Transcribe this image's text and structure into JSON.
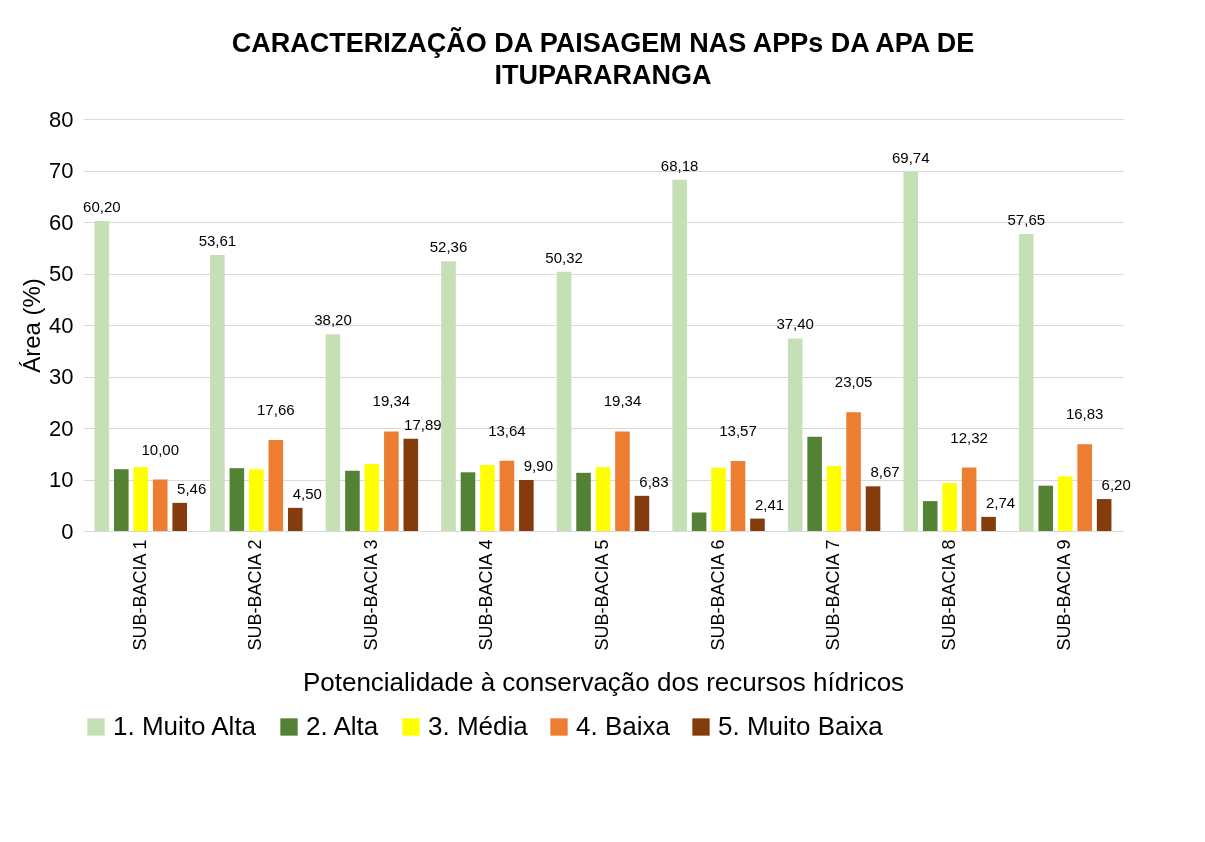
{
  "chart_data": {
    "type": "bar",
    "title": "CARACTERIZAÇÃO DA PAISAGEM NAS APPs DA APA DE ITUPARARANGA",
    "xlabel": "Potencialidade à conservação dos recursos hídricos",
    "ylabel": "Área (%)",
    "categories": [
      "SUB-BACIA 1",
      "SUB-BACIA 2",
      "SUB-BACIA 3",
      "SUB-BACIA 4",
      "SUB-BACIA 5",
      "SUB-BACIA 6",
      "SUB-BACIA 7",
      "SUB-BACIA 8",
      "SUB-BACIA 9"
    ],
    "series": [
      {
        "name": "1. Muito Alta",
        "color": "#c5e0b4",
        "values": [
          60.2,
          53.61,
          38.2,
          52.36,
          50.32,
          68.18,
          37.4,
          69.74,
          57.65
        ],
        "value_labels": [
          "60,20",
          "53,61",
          "38,20",
          "52,36",
          "50,32",
          "68,18",
          "37,40",
          "69,74",
          "57,65"
        ]
      },
      {
        "name": "2. Alta",
        "color": "#548235",
        "values": [
          12.0,
          12.2,
          11.7,
          11.4,
          11.3,
          3.6,
          18.3,
          5.8,
          8.8
        ]
      },
      {
        "name": "3. Média",
        "color": "#ffff00",
        "values": [
          12.4,
          12.0,
          13.0,
          12.8,
          12.4,
          12.3,
          12.6,
          9.3,
          10.6
        ]
      },
      {
        "name": "4. Baixa",
        "color": "#ed7d31",
        "values": [
          10.0,
          17.66,
          19.34,
          13.64,
          19.34,
          13.57,
          23.05,
          12.32,
          16.83
        ],
        "value_labels": [
          "10,00",
          "17,66",
          "19,34",
          "13,64",
          "19,34",
          "13,57",
          "23,05",
          "12,32",
          "16,83"
        ]
      },
      {
        "name": "5. Muito Baixa",
        "color": "#843c0c",
        "values": [
          5.46,
          4.5,
          17.89,
          9.9,
          6.83,
          2.41,
          8.67,
          2.74,
          6.2
        ],
        "value_labels": [
          "5,46",
          "4,50",
          "17,89",
          "9,90",
          "6,83",
          "2,41",
          "8,67",
          "2,74",
          "6,20"
        ]
      }
    ],
    "ylim": [
      0,
      80
    ],
    "yticks": [
      0,
      10,
      20,
      30,
      40,
      50,
      60,
      70,
      80
    ],
    "grid": "y",
    "legend": "bottom"
  }
}
